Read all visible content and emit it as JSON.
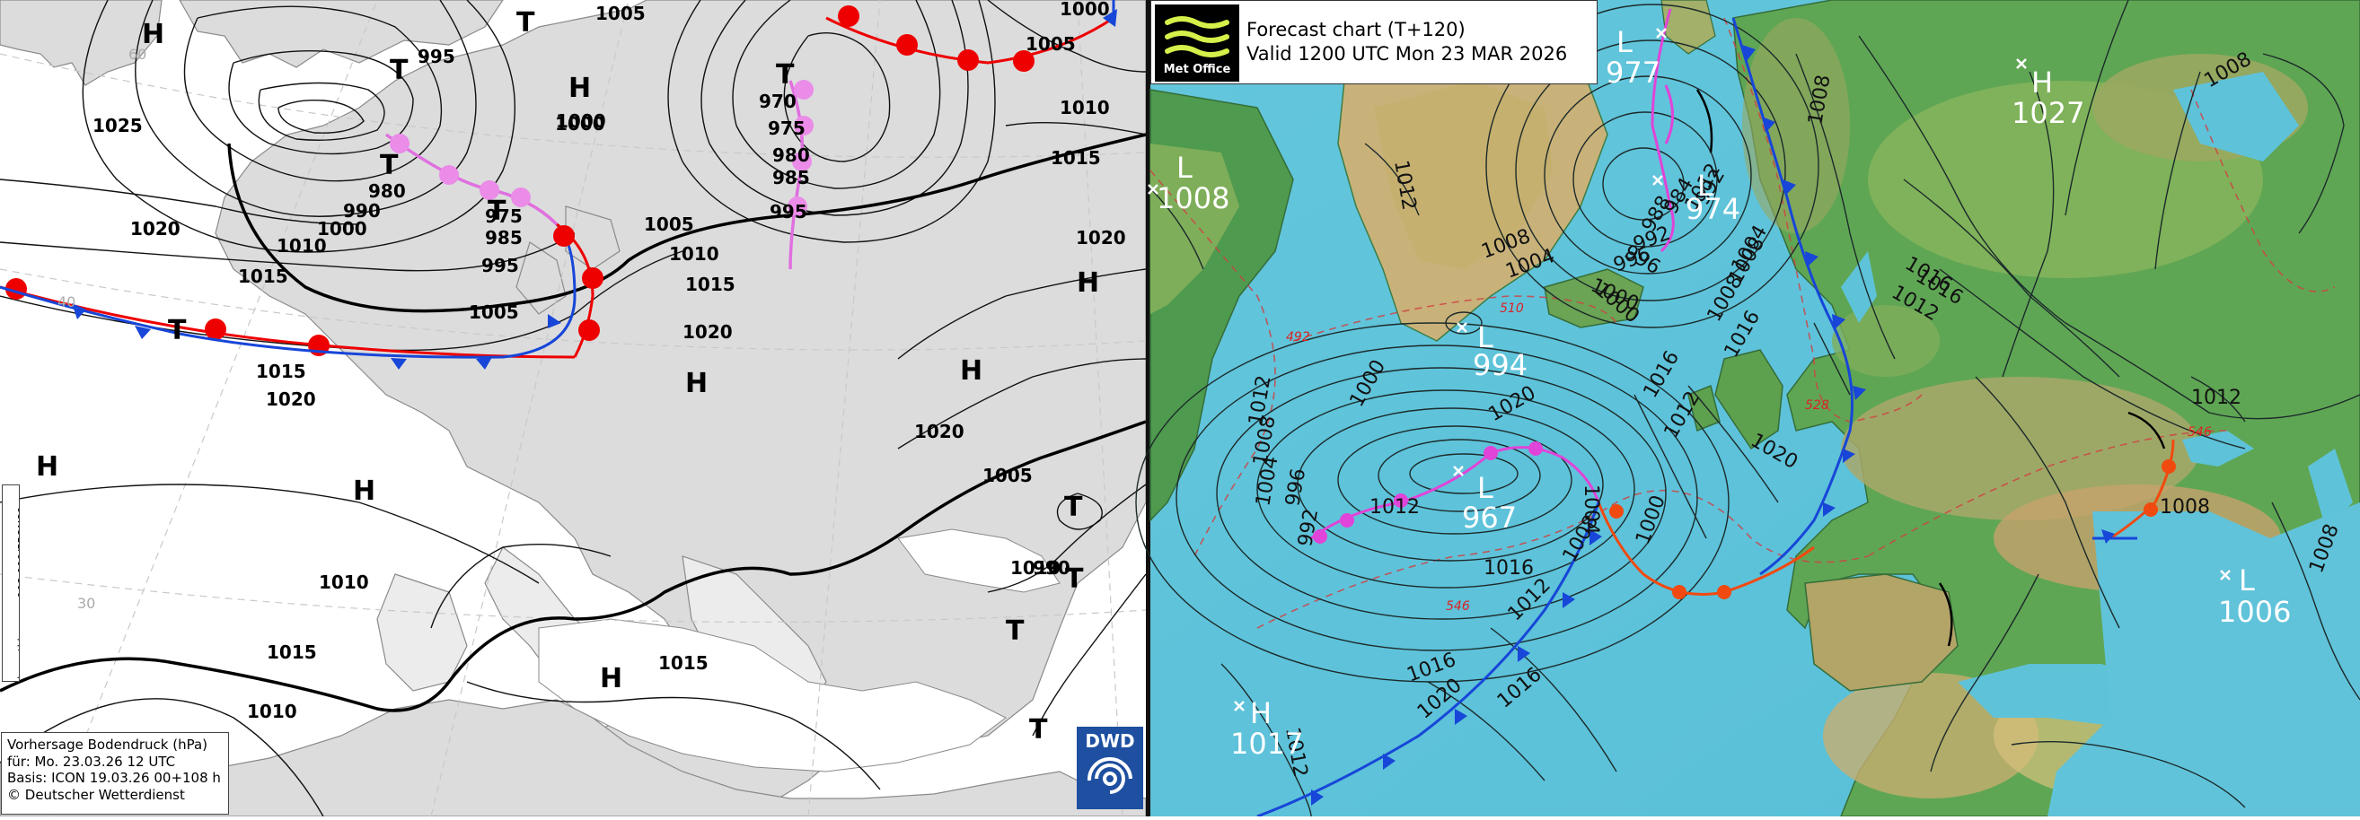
{
  "dwd": {
    "info_lines": [
      "Vorhersage Bodendruck (hPa)",
      "für:  Mo. 23.03.26  12 UTC",
      "Basis: ICON  19.03.26 00+108 h",
      "© Deutscher Wetterdienst"
    ],
    "run_id": "icon_tkb_na_p_108 000/PPON89",
    "logo": "DWD",
    "isobar_labels": [
      "1005",
      "995",
      "1000",
      "1005",
      "1000",
      "1025",
      "1020",
      "1015",
      "1010",
      "1000",
      "990",
      "980",
      "975",
      "985",
      "995",
      "1005",
      "1000",
      "970",
      "975",
      "980",
      "985",
      "995",
      "1005",
      "1010",
      "1015",
      "1020",
      "1010",
      "1015",
      "1020",
      "1020",
      "1015",
      "1020",
      "1020",
      "1010",
      "1015",
      "1010",
      "1015",
      "1010",
      "1005",
      "990"
    ],
    "symbols": [
      "H",
      "T",
      "T",
      "H",
      "T",
      "T",
      "T",
      "T",
      "H",
      "H",
      "H",
      "H",
      "T",
      "T",
      "T",
      "H",
      "H",
      "T"
    ],
    "grid_labels": [
      "60",
      "40",
      "30"
    ]
  },
  "metoffice": {
    "title": "Forecast chart (T+120)",
    "valid": "Valid 1200 UTC Mon 23 MAR 2026",
    "logo_text": "Met Office",
    "centres": [
      {
        "type": "L",
        "value": "1008"
      },
      {
        "type": "L",
        "value": "977"
      },
      {
        "type": "L",
        "value": "974"
      },
      {
        "type": "H",
        "value": "1027"
      },
      {
        "type": "L",
        "value": "994"
      },
      {
        "type": "L",
        "value": "967"
      },
      {
        "type": "H",
        "value": "1017"
      },
      {
        "type": "L",
        "value": "1006"
      }
    ],
    "isobar_labels": [
      "1012",
      "1008",
      "1004",
      "1000",
      "996",
      "992",
      "988",
      "984",
      "1012",
      "1008",
      "1004",
      "1000",
      "996",
      "992",
      "1012",
      "1016",
      "1020",
      "1004",
      "1008",
      "1012",
      "1016",
      "1020",
      "1016",
      "1012",
      "1016",
      "1012",
      "1008",
      "1008",
      "1016",
      "1020",
      "1012",
      "1000",
      "996",
      "992",
      "1008",
      "1004",
      "1000",
      "1008",
      "1012",
      "1016",
      "1008",
      "1016",
      "1012",
      "1008"
    ],
    "thickness_labels": [
      "492",
      "510",
      "528",
      "546",
      "546"
    ]
  }
}
